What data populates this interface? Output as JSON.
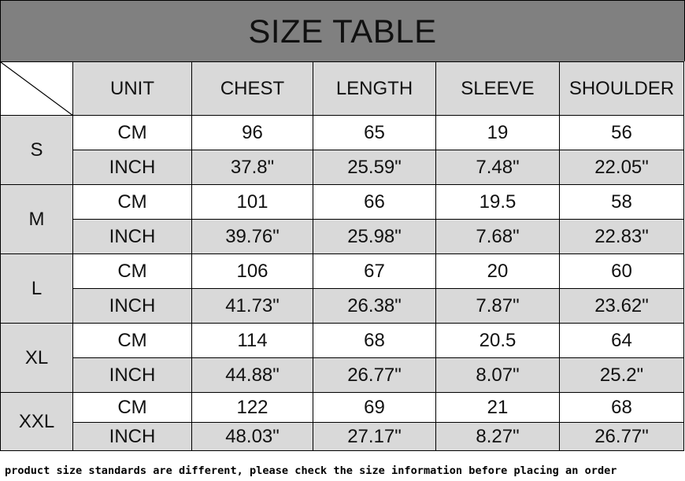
{
  "title": "SIZE TABLE",
  "headers": [
    "UNIT",
    "CHEST",
    "LENGTH",
    "SLEEVE",
    "SHOULDER"
  ],
  "sizes": [
    {
      "size": "S",
      "cm": {
        "unit": "CM",
        "values": [
          "96",
          "65",
          "19",
          "56"
        ]
      },
      "inch": {
        "unit": "INCH",
        "values": [
          "37.8\"",
          "25.59\"",
          "7.48\"",
          "22.05\""
        ]
      }
    },
    {
      "size": "M",
      "cm": {
        "unit": "CM",
        "values": [
          "101",
          "66",
          "19.5",
          "58"
        ]
      },
      "inch": {
        "unit": "INCH",
        "values": [
          "39.76\"",
          "25.98\"",
          "7.68\"",
          "22.83\""
        ]
      }
    },
    {
      "size": "L",
      "cm": {
        "unit": "CM",
        "values": [
          "106",
          "67",
          "20",
          "60"
        ]
      },
      "inch": {
        "unit": "INCH",
        "values": [
          "41.73\"",
          "26.38\"",
          "7.87\"",
          "23.62\""
        ]
      }
    },
    {
      "size": "XL",
      "cm": {
        "unit": "CM",
        "values": [
          "114",
          "68",
          "20.5",
          "64"
        ]
      },
      "inch": {
        "unit": "INCH",
        "values": [
          "44.88\"",
          "26.77\"",
          "8.07\"",
          "25.2\""
        ]
      }
    },
    {
      "size": "XXL",
      "cm": {
        "unit": "CM",
        "values": [
          "122",
          "69",
          "21",
          "68"
        ]
      },
      "inch": {
        "unit": "INCH",
        "values": [
          "48.03\"",
          "27.17\"",
          "8.27\"",
          "26.77\""
        ]
      }
    }
  ],
  "note": "product size standards are different, please check the size information before placing an order",
  "colors": {
    "title_bg": "#808080",
    "header_bg": "#d9d9d9",
    "inch_row_bg": "#d9d9d9",
    "size_col_bg": "#d9d9d9"
  }
}
